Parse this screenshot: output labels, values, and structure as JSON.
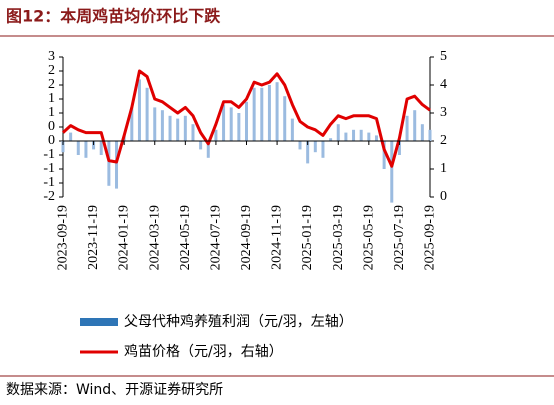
{
  "chart_data": {
    "type": "bar_line",
    "title": "图12：本周鸡苗均价环比下跌",
    "source": "数据来源：Wind、开源证券研究所",
    "categories": [
      "2023-09-19",
      null,
      null,
      null,
      "2023-11-19",
      null,
      null,
      null,
      "2024-01-19",
      null,
      null,
      null,
      "2024-03-19",
      null,
      null,
      null,
      "2024-05-19",
      null,
      null,
      null,
      "2024-07-19",
      null,
      null,
      null,
      "2024-09-19",
      null,
      null,
      null,
      "2024-11-19",
      null,
      null,
      null,
      "2025-01-19",
      null,
      null,
      null,
      "2025-03-19",
      null,
      null,
      null,
      "2025-05-19",
      null,
      null,
      null,
      "2025-07-19",
      null,
      null,
      null,
      "2025-09-19"
    ],
    "series": [
      {
        "name": "父母代种鸡养殖利润（元/羽，左轴）",
        "color": "#9bbbe0",
        "legend_color": "#2e75b6",
        "axis": "y",
        "values": [
          -0.4,
          0.3,
          -0.5,
          -0.6,
          -0.3,
          -0.5,
          -1.6,
          -1.7,
          0.2,
          1.2,
          2.2,
          1.9,
          1.2,
          1.1,
          0.9,
          0.8,
          0.9,
          0.6,
          -0.3,
          -0.6,
          0.4,
          1.3,
          1.2,
          1.0,
          1.4,
          1.9,
          1.9,
          2.0,
          2.1,
          1.6,
          0.8,
          -0.3,
          -0.8,
          -0.4,
          -0.6,
          0.1,
          0.6,
          0.3,
          0.4,
          0.4,
          0.3,
          0.2,
          -1.0,
          -2.2,
          -0.5,
          0.9,
          1.1,
          0.6,
          0.4
        ]
      },
      {
        "name": "鸡苗价格（元/羽，右轴）",
        "color": "#e00000",
        "axis": "y2",
        "values": [
          2.3,
          2.55,
          2.4,
          2.3,
          2.3,
          2.3,
          1.3,
          1.25,
          2.2,
          3.2,
          4.5,
          4.3,
          3.5,
          3.4,
          3.2,
          3.0,
          3.2,
          2.9,
          2.3,
          1.9,
          2.6,
          3.4,
          3.4,
          3.2,
          3.5,
          4.1,
          4.0,
          4.1,
          4.4,
          4.0,
          3.3,
          2.7,
          2.5,
          2.4,
          2.2,
          2.6,
          2.9,
          2.8,
          2.9,
          2.9,
          2.9,
          2.8,
          1.7,
          1.1,
          2.1,
          3.5,
          3.6,
          3.3,
          3.1
        ]
      }
    ],
    "ylim": [
      -2,
      3
    ],
    "yticks": [
      3,
      {
        "value": 2.5,
        "label": "2"
      },
      2,
      {
        "value": 1.5,
        "label": "1"
      },
      1,
      {
        "value": 0.5,
        "label": "0"
      },
      0,
      {
        "value": -0.5,
        "label": "-1"
      },
      {
        "value": -1,
        "label": "-1"
      },
      {
        "value": -1.5,
        "label": "-1"
      },
      -2
    ],
    "y2lim": [
      0,
      5
    ],
    "y2ticks": [
      0,
      1,
      2,
      3,
      4,
      5
    ]
  }
}
